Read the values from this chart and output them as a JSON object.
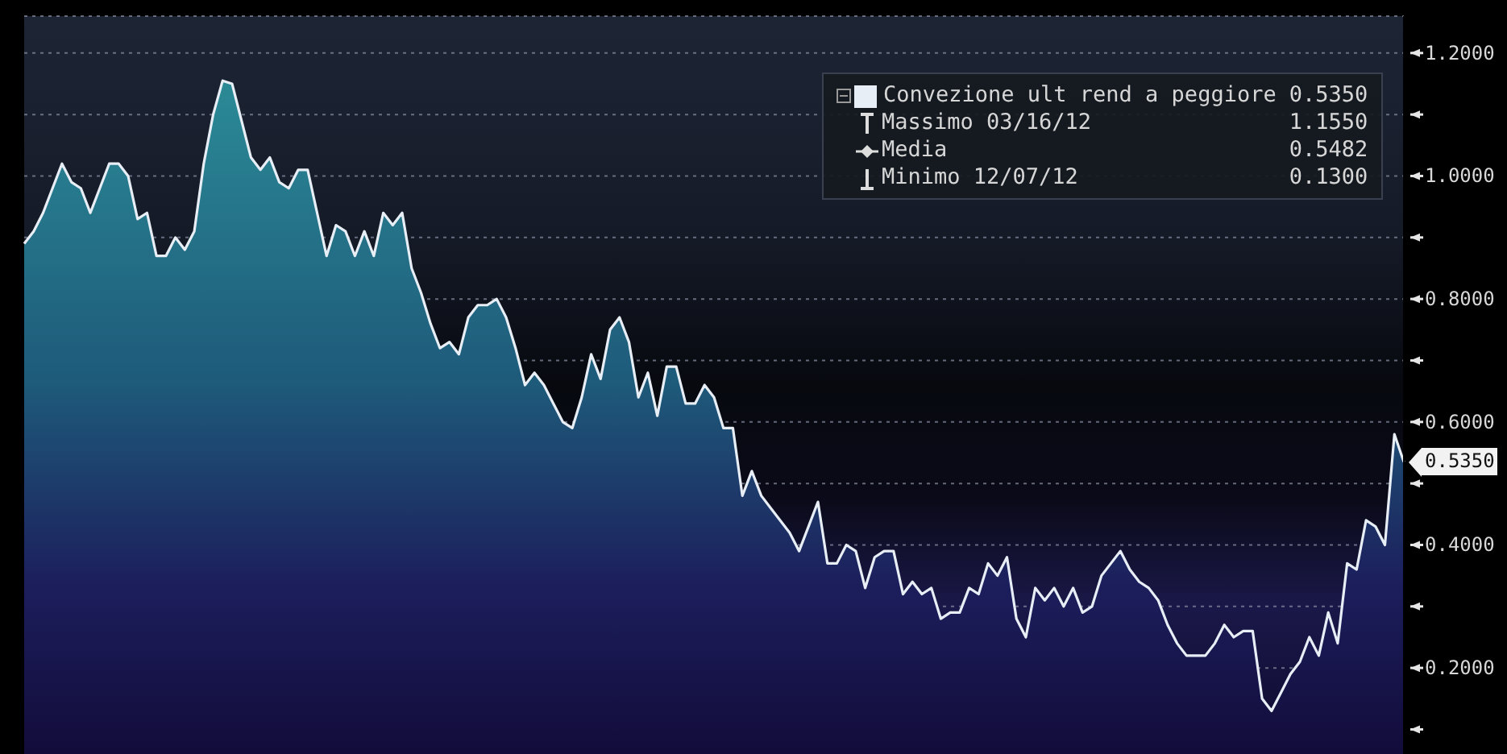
{
  "chart_data": {
    "type": "area",
    "categories": [
      null,
      null,
      null,
      null,
      null,
      null,
      null,
      null,
      null,
      null,
      null,
      null,
      null,
      null,
      null,
      null,
      null,
      null,
      null,
      null,
      null,
      null,
      null,
      null,
      null,
      null,
      null,
      null,
      null,
      null,
      null,
      null,
      null,
      null,
      null,
      null,
      null,
      null,
      null,
      null,
      null,
      null,
      null,
      null,
      null,
      null,
      null,
      null,
      null,
      null,
      null,
      null,
      null,
      null,
      null,
      null,
      null,
      null,
      null,
      null,
      null,
      null,
      null,
      null,
      null,
      null,
      null,
      null,
      null,
      null,
      null,
      null,
      null,
      null,
      null,
      null,
      null,
      null,
      null,
      null,
      null,
      null,
      null,
      null,
      null,
      null,
      null,
      null,
      null,
      null,
      null,
      null,
      null,
      null,
      null,
      null,
      null,
      null,
      null,
      null,
      null,
      null,
      null,
      null,
      null,
      null,
      null,
      null,
      null,
      null,
      null,
      null,
      null,
      null,
      null,
      null,
      null,
      null,
      null,
      null,
      null,
      null,
      null,
      null,
      null,
      null,
      null,
      null,
      null,
      null,
      null,
      null,
      null,
      null,
      null,
      null,
      null,
      null,
      null,
      null,
      null,
      null,
      null,
      null,
      null,
      null,
      null
    ],
    "series": [
      {
        "name": "Convezione ult rend a peggiore",
        "color": "#e8eef5",
        "values": [
          0.89,
          0.91,
          0.94,
          0.98,
          1.02,
          0.99,
          0.98,
          0.94,
          0.98,
          1.02,
          1.02,
          1.0,
          0.93,
          0.94,
          0.87,
          0.87,
          0.9,
          0.88,
          0.91,
          1.02,
          1.1,
          1.155,
          1.15,
          1.09,
          1.03,
          1.01,
          1.03,
          0.99,
          0.98,
          1.01,
          1.01,
          0.94,
          0.87,
          0.92,
          0.91,
          0.87,
          0.91,
          0.87,
          0.94,
          0.92,
          0.94,
          0.85,
          0.81,
          0.76,
          0.72,
          0.73,
          0.71,
          0.77,
          0.79,
          0.79,
          0.8,
          0.77,
          0.72,
          0.66,
          0.68,
          0.66,
          0.63,
          0.6,
          0.59,
          0.64,
          0.71,
          0.67,
          0.75,
          0.77,
          0.73,
          0.64,
          0.68,
          0.61,
          0.69,
          0.69,
          0.63,
          0.63,
          0.66,
          0.64,
          0.59,
          0.59,
          0.48,
          0.52,
          0.48,
          0.46,
          0.44,
          0.42,
          0.39,
          0.43,
          0.47,
          0.37,
          0.37,
          0.4,
          0.39,
          0.33,
          0.38,
          0.39,
          0.39,
          0.32,
          0.34,
          0.32,
          0.33,
          0.28,
          0.29,
          0.29,
          0.33,
          0.32,
          0.37,
          0.35,
          0.38,
          0.28,
          0.25,
          0.33,
          0.31,
          0.33,
          0.3,
          0.33,
          0.29,
          0.3,
          0.35,
          0.37,
          0.39,
          0.36,
          0.34,
          0.33,
          0.31,
          0.27,
          0.24,
          0.22,
          0.22,
          0.22,
          0.24,
          0.27,
          0.25,
          0.26,
          0.26,
          0.15,
          0.13,
          0.16,
          0.19,
          0.21,
          0.25,
          0.22,
          0.29,
          0.24,
          0.37,
          0.36,
          0.44,
          0.43,
          0.4,
          0.58,
          0.535
        ]
      }
    ],
    "ylim": [
      0.06,
      1.26
    ],
    "yticks": [
      {
        "value": 0.1,
        "label": null
      },
      {
        "value": 0.2,
        "label": "0.2000"
      },
      {
        "value": 0.3,
        "label": null
      },
      {
        "value": 0.4,
        "label": "0.4000"
      },
      {
        "value": 0.5,
        "label": null
      },
      {
        "value": 0.6,
        "label": "0.6000"
      },
      {
        "value": 0.7,
        "label": null
      },
      {
        "value": 0.8,
        "label": "0.8000"
      },
      {
        "value": 0.9,
        "label": null
      },
      {
        "value": 1.0,
        "label": "1.0000"
      },
      {
        "value": 1.1,
        "label": null
      },
      {
        "value": 1.2,
        "label": "1.2000"
      }
    ],
    "grid": "y",
    "legend": "top right",
    "tick_labels": "y",
    "annotations": [
      "0.5350",
      "Massimo 03/16/12",
      "1.1550",
      "Media",
      "0.5482",
      "Minimo 12/07/12",
      "0.1300",
      "0.5350"
    ]
  }
}
